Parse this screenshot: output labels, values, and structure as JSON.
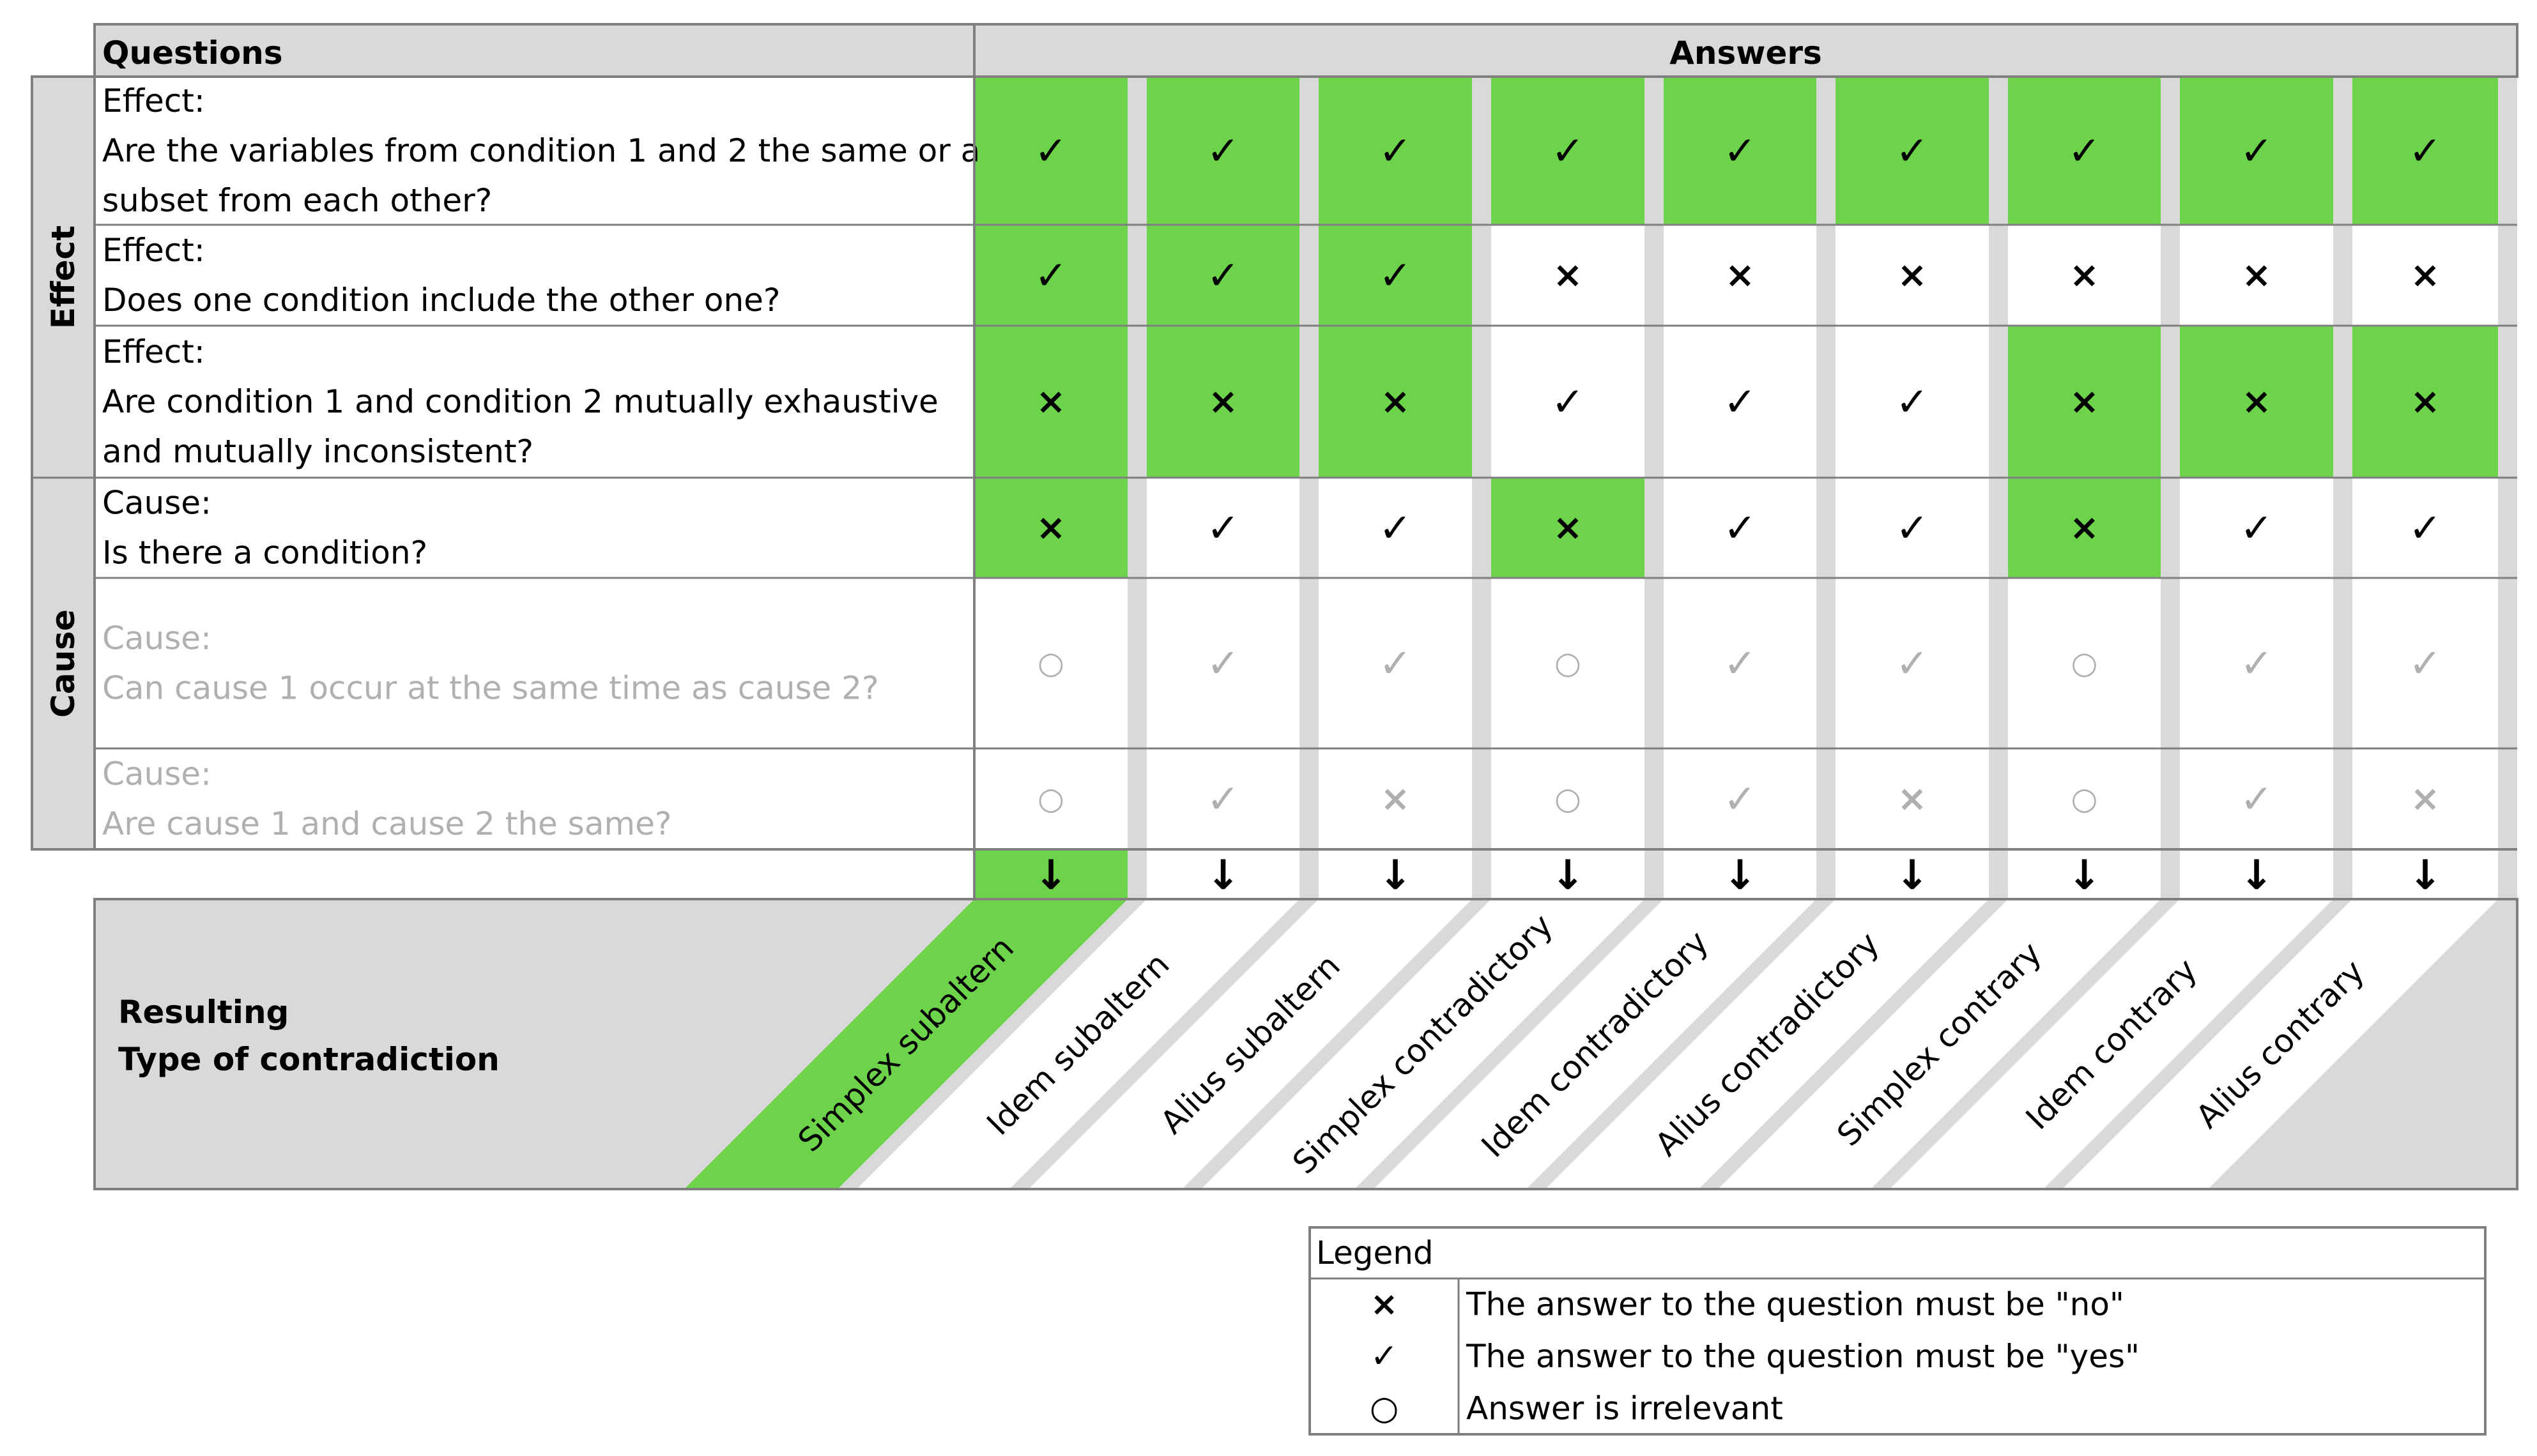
{
  "header": {
    "questions_label": "Questions",
    "answers_label": "Answers"
  },
  "groups": [
    {
      "label": "Effect"
    },
    {
      "label": "Cause"
    }
  ],
  "questions": [
    {
      "lines": [
        "Effect:",
        "Are the variables from condition 1 and 2 the same or a",
        "subset from each other?"
      ],
      "dim": false
    },
    {
      "lines": [
        "Effect:",
        "Does one condition include the other one?"
      ],
      "dim": false
    },
    {
      "lines": [
        "Effect:",
        "Are condition 1 and condition 2 mutually exhaustive",
        "and mutually inconsistent?"
      ],
      "dim": false
    },
    {
      "lines": [
        "Cause:",
        "Is there a condition?"
      ],
      "dim": false
    },
    {
      "lines": [
        "Cause:",
        "Can cause 1 occur at the same time as cause 2?"
      ],
      "dim": true
    },
    {
      "lines": [
        "Cause:",
        "Are cause 1 and cause 2 the same?"
      ],
      "dim": true
    }
  ],
  "answer_grid": [
    [
      "yes",
      "yes",
      "yes",
      "yes",
      "yes",
      "yes",
      "yes",
      "yes",
      "yes"
    ],
    [
      "yes",
      "yes",
      "yes",
      "no",
      "no",
      "no",
      "no",
      "no",
      "no"
    ],
    [
      "no",
      "no",
      "no",
      "yes",
      "yes",
      "yes",
      "no",
      "no",
      "no"
    ],
    [
      "no",
      "yes",
      "yes",
      "no",
      "yes",
      "yes",
      "no",
      "yes",
      "yes"
    ],
    [
      "irrelevant",
      "yes",
      "yes",
      "irrelevant",
      "yes",
      "yes",
      "irrelevant",
      "yes",
      "yes"
    ],
    [
      "irrelevant",
      "yes",
      "no",
      "irrelevant",
      "yes",
      "no",
      "irrelevant",
      "yes",
      "no"
    ]
  ],
  "highlight_grid": [
    [
      true,
      true,
      true,
      true,
      true,
      true,
      true,
      true,
      true
    ],
    [
      true,
      true,
      true,
      false,
      false,
      false,
      false,
      false,
      false
    ],
    [
      true,
      true,
      true,
      false,
      false,
      false,
      true,
      true,
      true
    ],
    [
      true,
      false,
      false,
      true,
      false,
      false,
      true,
      false,
      false
    ],
    [
      false,
      false,
      false,
      false,
      false,
      false,
      false,
      false,
      false
    ],
    [
      false,
      false,
      false,
      false,
      false,
      false,
      false,
      false,
      false
    ]
  ],
  "symbols": {
    "yes": "✓",
    "no": "×",
    "irrelevant": "○",
    "arrow": "↓"
  },
  "result": {
    "title_line1": "Resulting",
    "title_line2": "Type of contradiction",
    "types": [
      "Simplex subaltern",
      "Idem subaltern",
      "Alius subaltern",
      "Simplex contradictory",
      "Idem contradictory",
      "Alius contradictory",
      "Simplex contrary",
      "Idem contrary",
      "Alius contrary"
    ],
    "highlighted_index": 0
  },
  "legend": {
    "title": "Legend",
    "rows": [
      {
        "symbol": "×",
        "text": "The answer to the question must be \"no\""
      },
      {
        "symbol": "✓",
        "text": "The answer to the question must be \"yes\""
      },
      {
        "symbol": "○",
        "text": "Answer is irrelevant"
      }
    ]
  },
  "colors": {
    "highlight_green": "#6dd34a",
    "header_grey": "#d9d9d9",
    "column_separator": "#d9d9d9",
    "grid_line": "#7f7f7f",
    "dim_text": "#b0b0b0",
    "text": "#000000"
  }
}
